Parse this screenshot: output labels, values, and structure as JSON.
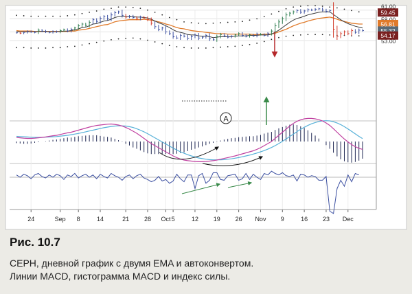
{
  "chart_data": {
    "type": "line",
    "panels": [
      "price",
      "macd",
      "force_index"
    ],
    "x_ticks": [
      "24",
      "Sep",
      "8",
      "14",
      "21",
      "28",
      "Oct",
      "5",
      "12",
      "19",
      "26",
      "Nov",
      "9",
      "16",
      "23",
      "Dec"
    ],
    "price_axis_ticks": [
      "61.00",
      "60.00",
      "58.00",
      "55.00",
      "53.00"
    ],
    "price_labels": [
      {
        "text": "59.45",
        "value": 59.45,
        "color": "#7a2020"
      },
      {
        "text": "56.81",
        "value": 56.81,
        "color": "#e07a2a"
      },
      {
        "text": "55.32",
        "value": 55.32,
        "color": "#5a6a76"
      },
      {
        "text": "54.17",
        "value": 54.17,
        "color": "#7a2020"
      }
    ],
    "annotation_marker": "A",
    "colors": {
      "bars_up": "#2e7d4f",
      "bars_down": "#d23a2a",
      "bars_neutral": "#3a4ea0",
      "ema_fast": "#3a3a3a",
      "ema_slow": "#e07a2a",
      "envelope": "#222222",
      "macd_line": "#c040a0",
      "signal_line": "#55b0d8",
      "histogram": "#1c2450",
      "force_index": "#3a4ea0",
      "arrow_red": "#b5282a",
      "arrow_green": "#3a8a4a"
    },
    "price_series": {
      "close": [
        54.8,
        54.7,
        54.9,
        55.1,
        55.0,
        54.9,
        55.4,
        55.2,
        55.0,
        54.9,
        55.1,
        55.0,
        55.3,
        55.5,
        55.2,
        55.6,
        55.9,
        56.4,
        56.8,
        56.5,
        57.2,
        57.8,
        57.4,
        58.1,
        58.5,
        58.0,
        58.9,
        59.4,
        59.6,
        58.8,
        58.4,
        58.6,
        58.3,
        58.0,
        58.4,
        58.2,
        57.8,
        57.0,
        56.2,
        55.6,
        55.9,
        55.0,
        54.6,
        53.9,
        53.6,
        54.2,
        54.0,
        53.5,
        53.9,
        54.3,
        53.6,
        53.8,
        54.2,
        53.4,
        53.2,
        53.9,
        54.4,
        54.1,
        53.8,
        54.0,
        54.3,
        54.6,
        54.2,
        54.0,
        54.3,
        54.1,
        54.5,
        54.4,
        54.2,
        54.6,
        55.2,
        56.4,
        57.3,
        58.0,
        58.9,
        59.3,
        59.6,
        59.9,
        59.5,
        59.8,
        60.1,
        60.0,
        60.2,
        60.3,
        60.0,
        59.7,
        59.9,
        55.6,
        54.0,
        54.6,
        55.0,
        54.6,
        55.3,
        54.9,
        55.4,
        55.3
      ],
      "ema_fast": [
        55.1,
        55.0,
        55.0,
        55.0,
        55.0,
        55.0,
        55.1,
        55.1,
        55.1,
        55.0,
        55.0,
        55.0,
        55.1,
        55.2,
        55.2,
        55.3,
        55.5,
        55.7,
        56.0,
        56.1,
        56.4,
        56.8,
        56.9,
        57.2,
        57.5,
        57.6,
        57.9,
        58.3,
        58.5,
        58.6,
        58.5,
        58.5,
        58.5,
        58.4,
        58.4,
        58.3,
        58.2,
        57.9,
        57.5,
        57.1,
        56.8,
        56.4,
        56.0,
        55.5,
        55.1,
        54.9,
        54.7,
        54.4,
        54.3,
        54.3,
        54.1,
        54.0,
        54.0,
        53.9,
        53.7,
        53.8,
        53.9,
        53.9,
        53.9,
        53.9,
        54.0,
        54.1,
        54.1,
        54.1,
        54.2,
        54.2,
        54.2,
        54.3,
        54.3,
        54.3,
        54.5,
        54.9,
        55.4,
        56.0,
        56.6,
        57.2,
        57.7,
        58.1,
        58.3,
        58.6,
        58.9,
        59.1,
        59.3,
        59.5,
        59.6,
        59.6,
        59.6,
        59.0,
        58.4,
        57.8,
        57.3,
        56.9,
        56.6,
        56.3,
        56.1,
        55.9
      ],
      "ema_slow": [
        55.3,
        55.2,
        55.2,
        55.2,
        55.2,
        55.1,
        55.1,
        55.1,
        55.1,
        55.1,
        55.1,
        55.1,
        55.1,
        55.1,
        55.1,
        55.2,
        55.2,
        55.4,
        55.5,
        55.6,
        55.8,
        56.0,
        56.2,
        56.4,
        56.6,
        56.7,
        57.0,
        57.3,
        57.5,
        57.6,
        57.7,
        57.8,
        57.8,
        57.8,
        57.8,
        57.9,
        57.8,
        57.7,
        57.5,
        57.3,
        57.1,
        56.8,
        56.6,
        56.3,
        56.0,
        55.8,
        55.7,
        55.5,
        55.3,
        55.2,
        55.1,
        55.0,
        54.9,
        54.8,
        54.7,
        54.6,
        54.6,
        54.6,
        54.5,
        54.5,
        54.5,
        54.5,
        54.5,
        54.5,
        54.5,
        54.4,
        54.4,
        54.4,
        54.5,
        54.5,
        54.5,
        54.7,
        55.0,
        55.3,
        55.6,
        56.0,
        56.4,
        56.7,
        57.0,
        57.2,
        57.5,
        57.7,
        57.9,
        58.1,
        58.2,
        58.3,
        58.4,
        58.2,
        57.9,
        57.6,
        57.4,
        57.2,
        57.0,
        56.9,
        56.8,
        56.8
      ]
    },
    "envelope": {
      "upper": [
        58.8,
        58.7,
        58.7,
        58.6,
        58.6,
        58.6,
        58.6,
        58.6,
        58.6,
        58.6,
        58.6,
        58.6,
        58.6,
        58.7,
        58.7,
        58.8,
        58.9,
        59.0,
        59.2,
        59.3,
        59.5,
        59.7,
        59.8,
        60.0,
        60.2,
        60.3,
        60.4,
        60.6,
        60.7,
        60.7,
        60.7,
        60.7,
        60.6,
        60.5,
        60.4,
        60.2,
        60.0,
        59.8,
        59.5,
        59.2,
        58.9,
        58.6,
        58.3,
        58.0,
        57.8,
        57.5,
        57.3,
        57.2,
        57.1,
        57.0,
        57.0,
        56.9,
        56.9,
        57.0,
        57.0,
        57.0,
        57.1,
        57.1,
        57.2,
        57.2,
        57.3,
        57.3,
        57.4,
        57.5,
        57.7,
        57.8,
        58.0,
        58.3,
        58.5,
        58.8,
        59.1,
        59.4,
        59.7,
        60.0,
        60.3,
        60.5,
        60.7,
        60.8,
        60.9,
        61.0,
        61.0,
        61.0,
        61.0,
        61.0,
        60.9,
        60.8,
        60.7,
        60.6,
        60.5,
        60.3,
        60.2,
        60.0,
        59.9,
        59.8,
        59.6,
        59.5
      ],
      "lower": [
        51.4,
        51.4,
        51.4,
        51.3,
        51.3,
        51.3,
        51.3,
        51.3,
        51.3,
        51.3,
        51.4,
        51.4,
        51.4,
        51.5,
        51.6,
        51.6,
        51.7,
        51.8,
        52.0,
        52.1,
        52.3,
        52.5,
        52.6,
        52.8,
        52.9,
        53.1,
        53.2,
        53.3,
        53.4,
        53.5,
        53.5,
        53.6,
        53.6,
        53.5,
        53.4,
        53.2,
        53.1,
        52.9,
        52.7,
        52.5,
        52.3,
        52.1,
        51.9,
        51.7,
        51.6,
        51.5,
        51.4,
        51.4,
        51.3,
        51.3,
        51.3,
        51.3,
        51.3,
        51.3,
        51.4,
        51.4,
        51.5,
        51.6,
        51.6,
        51.7,
        51.7,
        51.8,
        51.9,
        52.0,
        52.1,
        52.2,
        52.4,
        52.6,
        52.8,
        53.0,
        53.3,
        53.5,
        53.7,
        53.9,
        54.0,
        54.1,
        54.2,
        54.3,
        54.3,
        54.4,
        54.4,
        54.4,
        54.4,
        54.4,
        54.4,
        54.3,
        54.3,
        54.3,
        54.2,
        54.2,
        54.2,
        54.1,
        54.1,
        54.1,
        54.1,
        54.1
      ]
    },
    "macd": {
      "macd_line": [
        0.2,
        0.18,
        0.16,
        0.15,
        0.15,
        0.16,
        0.18,
        0.2,
        0.22,
        0.25,
        0.28,
        0.3,
        0.34,
        0.38,
        0.42,
        0.45,
        0.5,
        0.55,
        0.6,
        0.65,
        0.7,
        0.74,
        0.78,
        0.8,
        0.82,
        0.84,
        0.85,
        0.83,
        0.8,
        0.75,
        0.68,
        0.6,
        0.5,
        0.4,
        0.28,
        0.15,
        0.02,
        -0.1,
        -0.2,
        -0.3,
        -0.4,
        -0.5,
        -0.6,
        -0.7,
        -0.78,
        -0.85,
        -0.9,
        -0.93,
        -0.95,
        -0.97,
        -0.98,
        -0.98,
        -0.97,
        -0.95,
        -0.93,
        -0.9,
        -0.86,
        -0.82,
        -0.78,
        -0.74,
        -0.7,
        -0.65,
        -0.6,
        -0.55,
        -0.5,
        -0.45,
        -0.38,
        -0.3,
        -0.2,
        -0.1,
        0.0,
        0.15,
        0.3,
        0.45,
        0.6,
        0.75,
        0.88,
        0.98,
        1.05,
        1.1,
        1.12,
        1.12,
        1.1,
        1.06,
        1.0,
        0.9,
        0.78,
        0.62,
        0.45,
        0.28,
        0.12,
        -0.02,
        -0.15,
        -0.25,
        -0.33,
        -0.38
      ],
      "signal_line": [
        0.25,
        0.24,
        0.23,
        0.22,
        0.21,
        0.2,
        0.2,
        0.2,
        0.21,
        0.22,
        0.23,
        0.24,
        0.26,
        0.28,
        0.3,
        0.33,
        0.36,
        0.39,
        0.43,
        0.47,
        0.51,
        0.55,
        0.59,
        0.63,
        0.67,
        0.7,
        0.73,
        0.75,
        0.76,
        0.76,
        0.75,
        0.72,
        0.68,
        0.62,
        0.55,
        0.47,
        0.38,
        0.28,
        0.18,
        0.08,
        -0.02,
        -0.12,
        -0.22,
        -0.32,
        -0.41,
        -0.5,
        -0.57,
        -0.64,
        -0.7,
        -0.75,
        -0.8,
        -0.83,
        -0.86,
        -0.88,
        -0.89,
        -0.89,
        -0.89,
        -0.88,
        -0.86,
        -0.84,
        -0.81,
        -0.78,
        -0.74,
        -0.7,
        -0.66,
        -0.61,
        -0.56,
        -0.5,
        -0.44,
        -0.37,
        -0.29,
        -0.2,
        -0.1,
        0.01,
        0.12,
        0.24,
        0.36,
        0.48,
        0.59,
        0.69,
        0.78,
        0.86,
        0.92,
        0.97,
        1.0,
        1.01,
        1.0,
        0.96,
        0.9,
        0.82,
        0.72,
        0.61,
        0.49,
        0.37,
        0.25,
        0.14
      ],
      "histogram": [
        -0.05,
        -0.06,
        -0.07,
        -0.07,
        -0.06,
        -0.04,
        -0.02,
        0.0,
        0.01,
        0.03,
        0.05,
        0.06,
        0.08,
        0.1,
        0.12,
        0.12,
        0.14,
        0.16,
        0.17,
        0.18,
        0.19,
        0.19,
        0.19,
        0.17,
        0.15,
        0.14,
        0.12,
        0.08,
        0.04,
        -0.01,
        -0.07,
        -0.12,
        -0.18,
        -0.22,
        -0.27,
        -0.32,
        -0.36,
        -0.38,
        -0.38,
        -0.38,
        -0.38,
        -0.38,
        -0.38,
        -0.38,
        -0.37,
        -0.35,
        -0.33,
        -0.29,
        -0.25,
        -0.22,
        -0.18,
        -0.15,
        -0.11,
        -0.07,
        -0.04,
        -0.01,
        0.03,
        0.06,
        0.08,
        0.1,
        0.11,
        0.13,
        0.14,
        0.15,
        0.16,
        0.16,
        0.18,
        0.2,
        0.24,
        0.27,
        0.29,
        0.35,
        0.4,
        0.44,
        0.48,
        0.51,
        0.52,
        0.5,
        0.46,
        0.41,
        0.34,
        0.26,
        0.18,
        0.09,
        0.0,
        -0.11,
        -0.22,
        -0.34,
        -0.45,
        -0.54,
        -0.6,
        -0.63,
        -0.64,
        -0.62,
        -0.58,
        -0.52
      ]
    },
    "force_index": {
      "values": [
        0.3,
        0.0,
        0.4,
        0.2,
        -0.2,
        0.3,
        0.5,
        0.1,
        -0.1,
        0.3,
        0.0,
        0.4,
        0.2,
        -0.3,
        0.3,
        0.1,
        0.5,
        -0.1,
        0.2,
        0.4,
        0.0,
        0.3,
        -0.2,
        0.4,
        0.1,
        -0.1,
        0.5,
        0.2,
        0.0,
        -0.4,
        0.1,
        0.3,
        -0.2,
        0.2,
        0.4,
        -0.1,
        -0.3,
        -0.6,
        -0.4,
        0.1,
        -0.5,
        -0.3,
        -0.8,
        -0.5,
        0.4,
        -0.2,
        -0.6,
        0.3,
        0.3,
        -1.5,
        0.2,
        0.5,
        -0.8,
        -0.4,
        0.6,
        0.6,
        -0.3,
        -0.4,
        0.2,
        0.3,
        0.4,
        -0.4,
        -0.2,
        0.5,
        -0.3,
        0.4,
        0.0,
        -0.3,
        0.5,
        0.3,
        0.8,
        0.5,
        0.3,
        0.6,
        0.2,
        0.1,
        0.3,
        -0.5,
        0.4,
        0.3,
        0.0,
        0.2,
        0.1,
        -0.4,
        -0.4,
        0.1,
        -4.5,
        -4.8,
        -1.5,
        -0.4,
        -1.2,
        0.3,
        -0.6,
        0.5,
        0.3
      ]
    }
  },
  "caption": {
    "label": "Рис. 10.7",
    "line1": "CEPH, дневной график с двумя EMA и автоконвертом.",
    "line2": "Линии MACD, гистограмма MACD и индекс силы."
  }
}
